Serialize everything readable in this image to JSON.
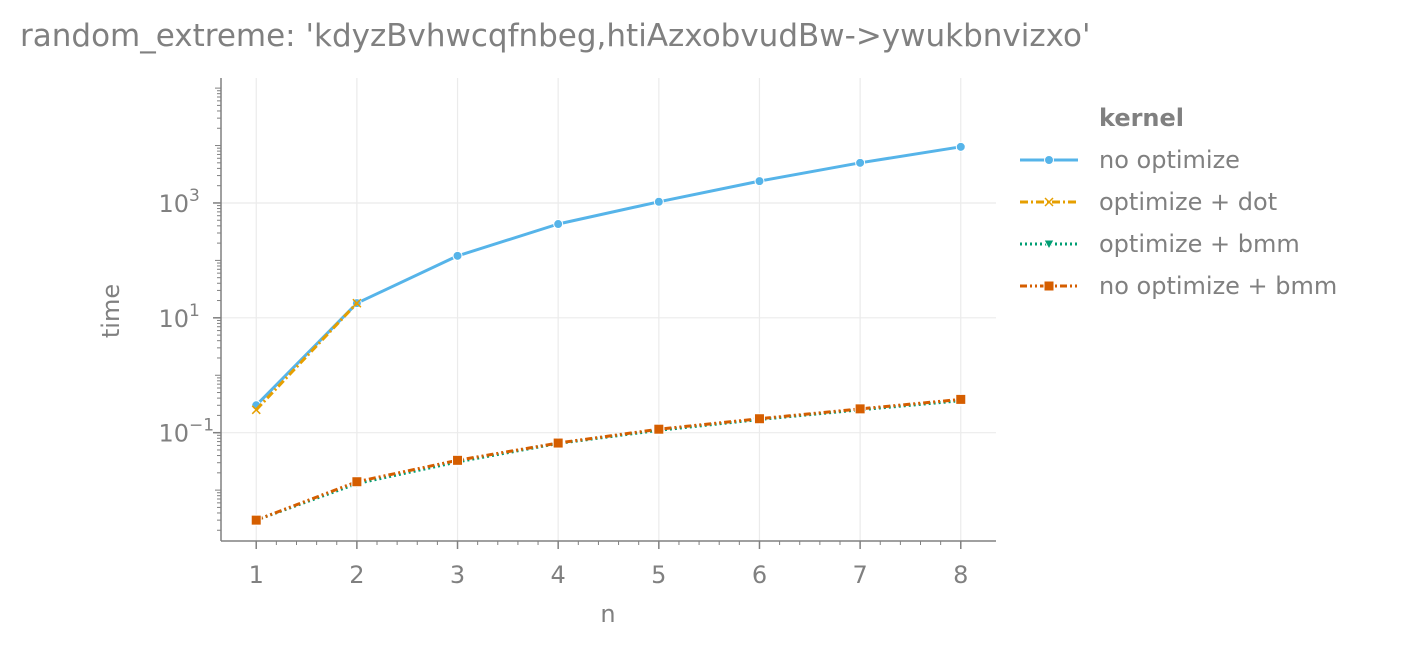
{
  "chart_data": {
    "type": "line",
    "title": "random_extreme: 'kdyzBvhwcqfnbeg,htiAzxobvudBw->ywukbnvizxo'",
    "xlabel": "n",
    "ylabel": "time",
    "yscale": "log",
    "x_ticks": [
      1,
      2,
      3,
      4,
      5,
      6,
      7,
      8
    ],
    "y_ticks": [
      {
        "value": 0.1,
        "base": "10",
        "exp": "−1"
      },
      {
        "value": 10,
        "base": "10",
        "exp": "1"
      },
      {
        "value": 1000,
        "base": "10",
        "exp": "3"
      }
    ],
    "xlim": [
      0.65,
      8.35
    ],
    "ylim": [
      0.0013,
      150000
    ],
    "grid": true,
    "legend": {
      "title": "kernel",
      "position": "right"
    },
    "series": [
      {
        "name": "no optimize",
        "color": "#56b4e9",
        "dash": "solid",
        "marker": "circle",
        "x": [
          1,
          2,
          3,
          4,
          5,
          6,
          7,
          8
        ],
        "y": [
          0.3,
          18,
          120,
          430,
          1050,
          2400,
          5000,
          9500
        ]
      },
      {
        "name": "optimize + dot",
        "color": "#e69f00",
        "dash": "dashdot",
        "marker": "x",
        "x": [
          1,
          2
        ],
        "y": [
          0.25,
          18
        ]
      },
      {
        "name": "optimize + bmm",
        "color": "#009e73",
        "dash": "dotted",
        "marker": "triangle",
        "x": [
          1,
          2,
          3,
          4,
          5,
          6,
          7,
          8
        ],
        "y": [
          0.003,
          0.013,
          0.031,
          0.065,
          0.11,
          0.17,
          0.25,
          0.36
        ]
      },
      {
        "name": "no optimize + bmm",
        "color": "#d55e00",
        "dash": "dashdotdot",
        "marker": "square",
        "x": [
          1,
          2,
          3,
          4,
          5,
          6,
          7,
          8
        ],
        "y": [
          0.003,
          0.014,
          0.033,
          0.066,
          0.115,
          0.175,
          0.26,
          0.38
        ]
      }
    ]
  }
}
